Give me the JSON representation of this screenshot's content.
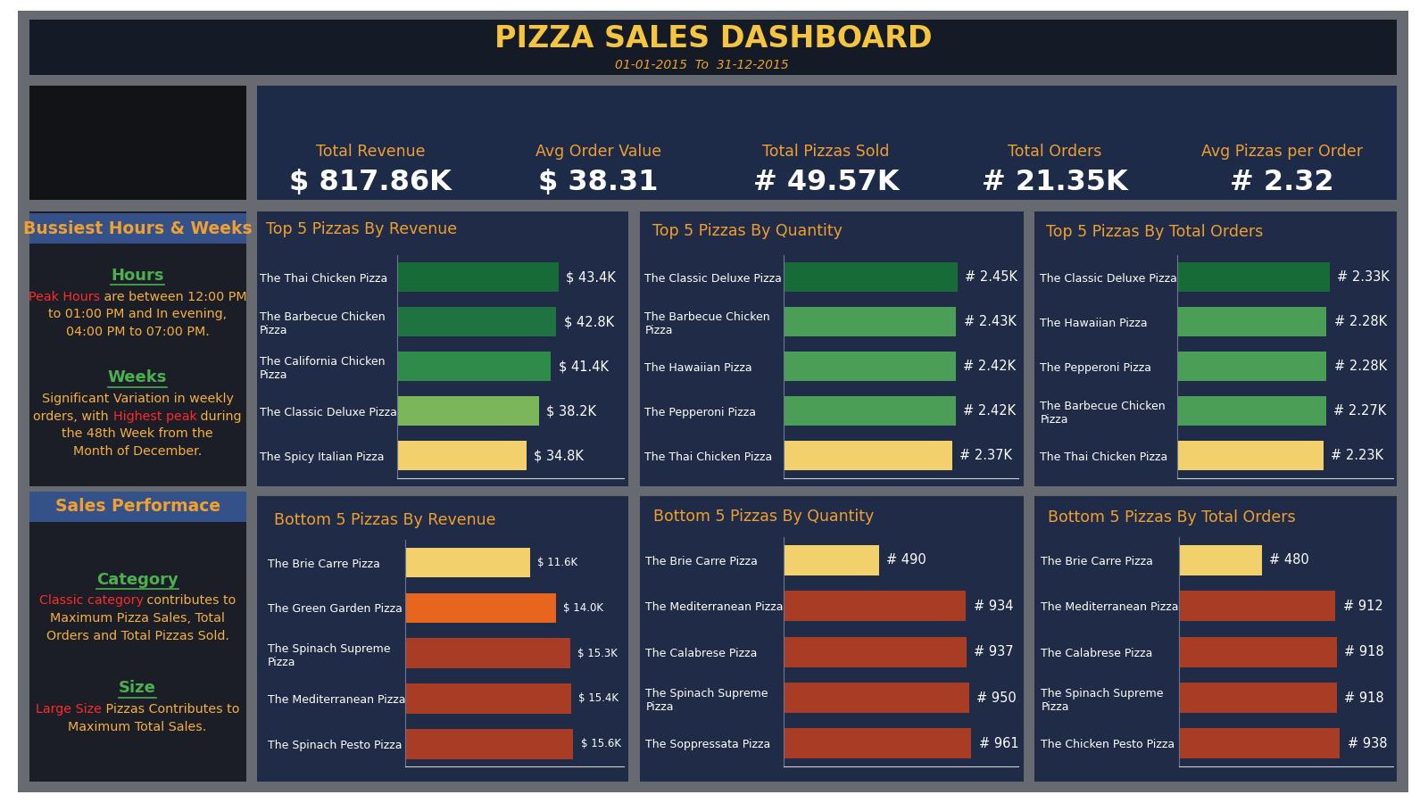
{
  "header": {
    "title": "PIZZA SALES DASHBOARD",
    "subtitle": "01-01-2015  To  31-12-2015"
  },
  "kpis": [
    {
      "label": "Total Revenue",
      "value": "$ 817.86K"
    },
    {
      "label": "Avg Order Value",
      "value": "$ 38.31"
    },
    {
      "label": "Total Pizzas Sold",
      "value": "# 49.57K"
    },
    {
      "label": "Total Orders",
      "value": "# 21.35K"
    },
    {
      "label": "Avg Pizzas per Order",
      "value": "# 2.32"
    }
  ],
  "insights": [
    {
      "title": "Bussiest Hours & Weeks",
      "sections": [
        {
          "heading": "Hours",
          "lines": [
            [
              {
                "text": "Peak Hours",
                "color": "#ff2a2a"
              },
              {
                "text": " are between 12:00 PM",
                "color": "#f5b041"
              }
            ],
            [
              {
                "text": "to 01:00 PM and In evening,",
                "color": "#f5b041"
              }
            ],
            [
              {
                "text": "04:00 PM to 07:00 PM.",
                "color": "#f5b041"
              }
            ]
          ]
        },
        {
          "heading": "Weeks",
          "lines": [
            [
              {
                "text": "Significant Variation in weekly",
                "color": "#f5b041"
              }
            ],
            [
              {
                "text": "orders, with ",
                "color": "#f5b041"
              },
              {
                "text": "Highest peak",
                "color": "#ff2a2a"
              },
              {
                "text": " during",
                "color": "#f5b041"
              }
            ],
            [
              {
                "text": "the 48th Week from the",
                "color": "#f5b041"
              }
            ],
            [
              {
                "text": "Month of December.",
                "color": "#f5b041"
              }
            ]
          ]
        }
      ]
    },
    {
      "title": "Sales Performace",
      "sections": [
        {
          "heading": "Category",
          "lines": [
            [
              {
                "text": "Classic category",
                "color": "#ff2a2a"
              },
              {
                "text": " contributes to",
                "color": "#f5b041"
              }
            ],
            [
              {
                "text": "Maximum Pizza Sales, Total",
                "color": "#f5b041"
              }
            ],
            [
              {
                "text": "Orders and Total Pizzas Sold.",
                "color": "#f5b041"
              }
            ]
          ]
        },
        {
          "heading": "Size",
          "lines": [
            [
              {
                "text": "Large Size",
                "color": "#ff2a2a"
              },
              {
                "text": " Pizzas Contributes to",
                "color": "#f5b041"
              }
            ],
            [
              {
                "text": "Maximum Total Sales.",
                "color": "#f5b041"
              }
            ]
          ]
        }
      ]
    }
  ],
  "chart_data": [
    {
      "type": "bar",
      "orientation": "horizontal",
      "title": "Top 5 Pizzas By Revenue",
      "categories": [
        "The Thai Chicken Pizza",
        "The Barbecue Chicken Pizza",
        "The California Chicken Pizza",
        "The Classic Deluxe Pizza",
        "The Spicy Italian Pizza"
      ],
      "values": [
        43400,
        42800,
        41400,
        38200,
        34800
      ],
      "value_labels": [
        "$ 43.4K",
        "$ 42.8K",
        "$ 41.4K",
        "$ 38.2K",
        "$ 34.8K"
      ],
      "colors": [
        "#176b37",
        "#1e7340",
        "#2e8b4a",
        "#7cb65a",
        "#f2d06b"
      ],
      "xlim": [
        0,
        61000
      ],
      "data_labels": true,
      "tick_labels": "y"
    },
    {
      "type": "bar",
      "orientation": "horizontal",
      "title": "Top 5 Pizzas By Quantity",
      "categories": [
        "The Classic Deluxe Pizza",
        "The Barbecue Chicken Pizza",
        "The Hawaiian Pizza",
        "The Pepperoni Pizza",
        "The Thai Chicken Pizza"
      ],
      "values": [
        2450,
        2430,
        2420,
        2420,
        2370
      ],
      "value_labels": [
        "# 2.45K",
        "# 2.43K",
        "# 2.42K",
        "# 2.42K",
        "# 2.37K"
      ],
      "colors": [
        "#176b37",
        "#4a9e56",
        "#4a9e56",
        "#4a9e56",
        "#f2d06b"
      ],
      "xlim": [
        0,
        3300
      ],
      "data_labels": true,
      "tick_labels": "y"
    },
    {
      "type": "bar",
      "orientation": "horizontal",
      "title": "Top 5 Pizzas By Total Orders",
      "categories": [
        "The Classic Deluxe Pizza",
        "The Hawaiian Pizza",
        "The Pepperoni Pizza",
        "The Barbecue Chicken Pizza",
        "The Thai Chicken Pizza"
      ],
      "values": [
        2330,
        2280,
        2280,
        2270,
        2230
      ],
      "value_labels": [
        "# 2.33K",
        "# 2.28K",
        "# 2.28K",
        "# 2.27K",
        "# 2.23K"
      ],
      "colors": [
        "#176b37",
        "#4a9e56",
        "#4a9e56",
        "#4a9e56",
        "#f2d06b"
      ],
      "xlim": [
        0,
        3300
      ],
      "data_labels": true,
      "tick_labels": "y"
    },
    {
      "type": "bar",
      "orientation": "horizontal",
      "title": "Bottom 5 Pizzas By Revenue",
      "categories": [
        "The Brie Carre Pizza",
        "The Green Garden Pizza",
        "The Spinach Supreme Pizza",
        "The Mediterranean Pizza",
        "The Spinach Pesto Pizza"
      ],
      "values": [
        11600,
        14000,
        15300,
        15400,
        15600
      ],
      "value_labels": [
        "$ 11.6K",
        "$ 14.0K",
        "$ 15.3K",
        "$ 15.4K",
        "$ 15.6K"
      ],
      "colors": [
        "#f2d06b",
        "#e8651e",
        "#a83c24",
        "#a83c24",
        "#a83c24"
      ],
      "xlim": [
        0,
        20300
      ],
      "data_labels": true,
      "tick_labels": "y"
    },
    {
      "type": "bar",
      "orientation": "horizontal",
      "title": "Bottom 5 Pizzas By Quantity",
      "categories": [
        "The Brie Carre Pizza",
        "The Mediterranean Pizza",
        "The Calabrese Pizza",
        "The Spinach Supreme Pizza",
        "The Soppressata Pizza"
      ],
      "values": [
        490,
        934,
        937,
        950,
        961
      ],
      "value_labels": [
        "# 490",
        "# 934",
        "# 937",
        "# 950",
        "# 961"
      ],
      "colors": [
        "#f2d06b",
        "#a83c24",
        "#a83c24",
        "#a83c24",
        "#a83c24"
      ],
      "xlim": [
        0,
        1200
      ],
      "data_labels": true,
      "tick_labels": "y"
    },
    {
      "type": "bar",
      "orientation": "horizontal",
      "title": "Bottom 5 Pizzas By Total Orders",
      "categories": [
        "The Brie Carre Pizza",
        "The Mediterranean Pizza",
        "The Calabrese Pizza",
        "The Spinach Supreme Pizza",
        "The Chicken Pesto Pizza"
      ],
      "values": [
        480,
        912,
        918,
        918,
        938
      ],
      "value_labels": [
        "# 480",
        "# 912",
        "# 918",
        "# 918",
        "# 938"
      ],
      "colors": [
        "#f2d06b",
        "#a83c24",
        "#a83c24",
        "#a83c24",
        "#a83c24"
      ],
      "xlim": [
        0,
        1250
      ],
      "data_labels": true,
      "tick_labels": "y"
    }
  ]
}
